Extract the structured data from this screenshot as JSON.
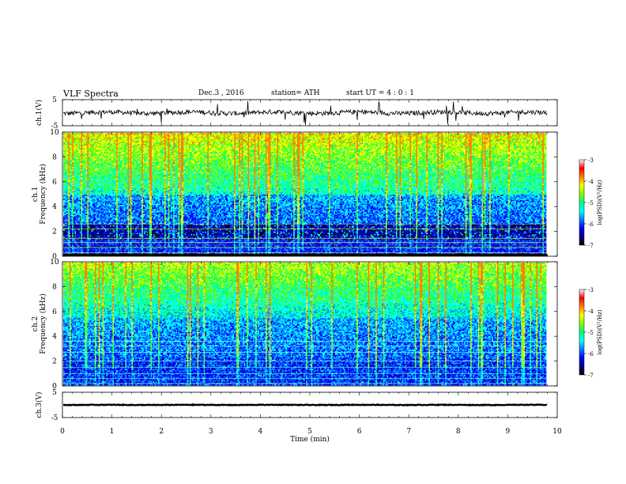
{
  "header": {
    "title": "VLF  Spectra",
    "date": "Dec.3  , 2016",
    "station": "station= ATH",
    "start": "start  UT  =   4 : 0  : 1"
  },
  "chart_data": [
    {
      "type": "line",
      "panel": "ch1-waveform",
      "ylabel": "ch.1(V)",
      "ylim": [
        -5,
        5
      ],
      "yticks": [
        "5",
        "-5"
      ],
      "xlim": [
        0,
        10
      ],
      "x_end": 9.8,
      "series": [
        {
          "baseline": 0.0,
          "noise": 0.9,
          "spikes": true
        }
      ]
    },
    {
      "type": "heatmap",
      "panel": "ch1-spectrogram",
      "ylabel": "ch.1\nFrequency  (kHz)",
      "ylim": [
        0,
        10
      ],
      "yticks": [
        "0",
        "2",
        "4",
        "6",
        "8",
        "10"
      ],
      "xlim": [
        0,
        10
      ],
      "x_end": 9.8,
      "colorbar": {
        "label": "log(PSD)(V²/Hz)",
        "range": [
          -7,
          -3
        ],
        "ticks": [
          "-3",
          "-4",
          "-5",
          "-6",
          "-7"
        ]
      }
    },
    {
      "type": "heatmap",
      "panel": "ch2-spectrogram",
      "ylabel": "ch.2\nFrequency  (kHz)",
      "ylim": [
        0,
        10
      ],
      "yticks": [
        "0",
        "2",
        "4",
        "6",
        "8",
        "10"
      ],
      "xlim": [
        0,
        10
      ],
      "x_end": 9.8,
      "colorbar": {
        "label": "log(PSD)(V²/Hz)",
        "range": [
          -7,
          -3
        ],
        "ticks": [
          "-3",
          "-4",
          "-5",
          "-6",
          "-7"
        ]
      }
    },
    {
      "type": "line",
      "panel": "ch3-waveform",
      "ylabel": "ch.3(V)",
      "ylim": [
        -5,
        5
      ],
      "yticks": [
        "5",
        "-5"
      ],
      "xlim": [
        0,
        10
      ],
      "x_end": 9.8,
      "series": [
        {
          "baseline": 0.0,
          "noise": 0.12,
          "spikes": false
        }
      ]
    }
  ],
  "xaxis": {
    "label": "Time  (min)",
    "ticks": [
      "0",
      "1",
      "2",
      "3",
      "4",
      "5",
      "6",
      "7",
      "8",
      "9",
      "10"
    ]
  },
  "colors": {
    "colormap": [
      "#000000",
      "#00008b",
      "#0000ff",
      "#0080ff",
      "#00ffff",
      "#00ff80",
      "#80ff00",
      "#ffff00",
      "#ff8000",
      "#ff0000",
      "#ffffff"
    ]
  }
}
